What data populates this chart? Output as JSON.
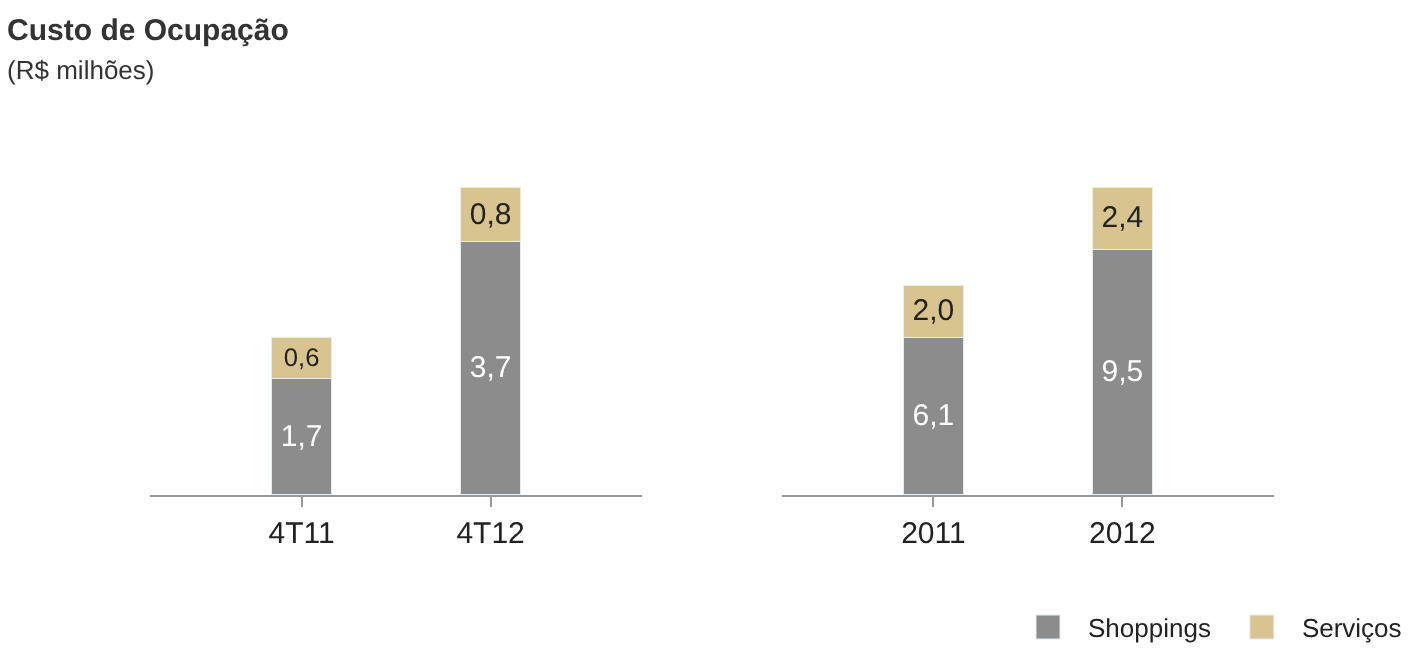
{
  "chart_data": [
    {
      "type": "bar",
      "title": "Custo de Ocupação",
      "subtitle": "(R$ milhões)",
      "stacked": true,
      "tick_labels": "x",
      "categories": [
        "4T11",
        "4T12"
      ],
      "series": [
        {
          "color": "#8c8c8c",
          "values": [
            1.7,
            3.7
          ],
          "value_labels": [
            "1,7",
            "3,7"
          ]
        },
        {
          "color": "#d8c48e",
          "values": [
            0.6,
            0.8
          ],
          "value_labels": [
            "0,6",
            "0,8"
          ]
        }
      ]
    },
    {
      "type": "bar",
      "stacked": true,
      "tick_labels": "x",
      "legend": "bottom right",
      "categories": [
        "2011",
        "2012"
      ],
      "series": [
        {
          "name": "Shoppings",
          "color": "#8c8c8c",
          "values": [
            6.1,
            9.5
          ],
          "value_labels": [
            "6,1",
            "9,5"
          ]
        },
        {
          "name": "Serviços",
          "color": "#d8c48e",
          "values": [
            2.0,
            2.4
          ],
          "value_labels": [
            "2,0",
            "2,4"
          ]
        }
      ]
    }
  ]
}
